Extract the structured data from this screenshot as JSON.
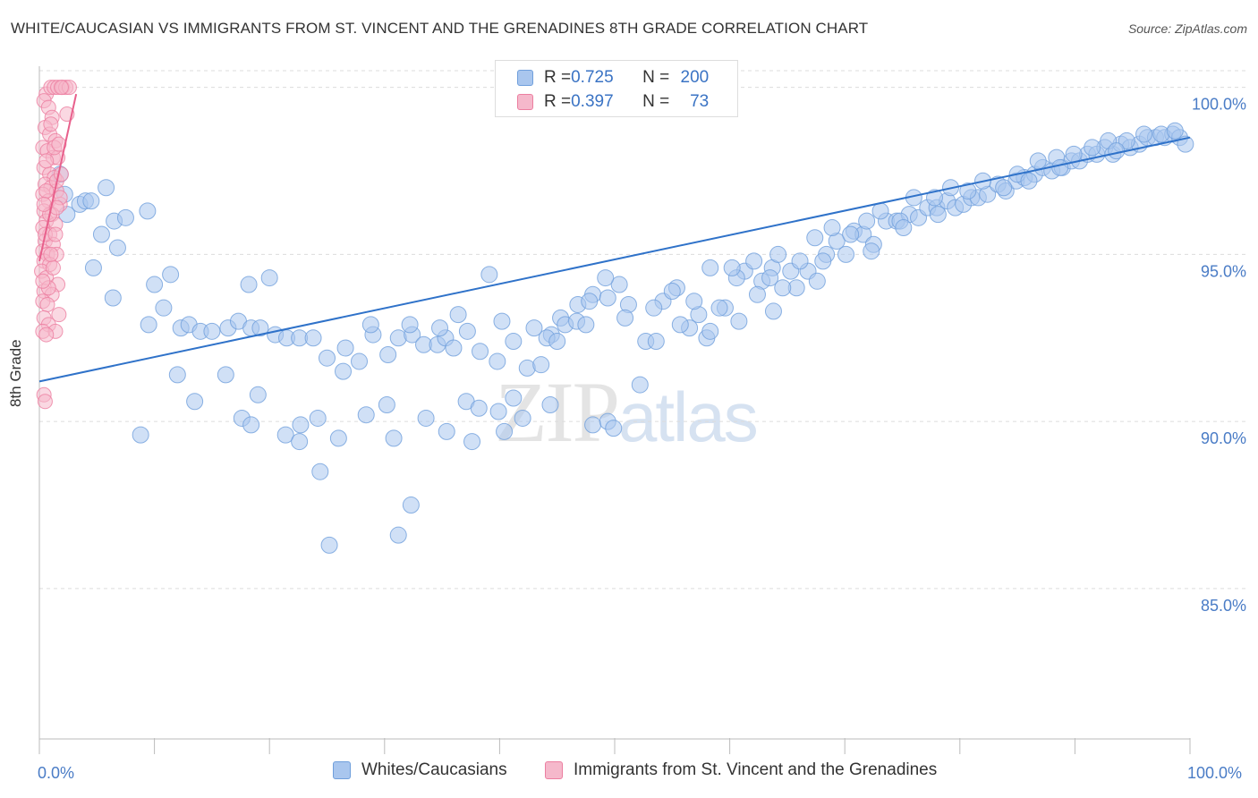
{
  "title": "WHITE/CAUCASIAN VS IMMIGRANTS FROM ST. VINCENT AND THE GRENADINES 8TH GRADE CORRELATION CHART",
  "source": "Source: ZipAtlas.com",
  "watermark": {
    "zip": "ZIP",
    "atlas": "atlas"
  },
  "legend_top": {
    "rows": [
      {
        "r_label": "R = ",
        "r_value": "0.725",
        "n_label": "N = ",
        "n_value": "200",
        "color": "#a9c6ee"
      },
      {
        "r_label": "R = ",
        "r_value": "0.397",
        "n_label": "N = ",
        "n_value": "73",
        "color": "#f5b8cb"
      }
    ]
  },
  "legend_bottom": [
    {
      "label": "Whites/Caucasians",
      "color": "#a9c6ee"
    },
    {
      "label": "Immigrants from St. Vincent and the Grenadines",
      "color": "#f5b8cb"
    }
  ],
  "chart_data": {
    "type": "scatter",
    "title": "WHITE/CAUCASIAN VS IMMIGRANTS FROM ST. VINCENT AND THE GRENADINES 8TH GRADE CORRELATION CHART",
    "xlabel": "",
    "ylabel": "8th Grade",
    "xlim": [
      0,
      100
    ],
    "ylim": [
      80.5,
      100.5
    ],
    "x_tick_labels": [
      "0.0%",
      "100.0%"
    ],
    "y_tick_labels": [
      "100.0%",
      "95.0%",
      "90.0%",
      "85.0%"
    ],
    "y_ticks": [
      100,
      95,
      90,
      85
    ],
    "grid": true,
    "legend_position": "top-center",
    "series": [
      {
        "name": "Whites/Caucasians",
        "color": "#6f9fdc",
        "fill": "#a9c6ee",
        "r": 0.725,
        "n": 200,
        "trend": {
          "x0": 0,
          "y0": 91.2,
          "x1": 100,
          "y1": 98.5
        },
        "points": [
          [
            1.8,
            97.4
          ],
          [
            2.2,
            96.8
          ],
          [
            2.4,
            96.2
          ],
          [
            3.5,
            96.5
          ],
          [
            4.0,
            96.6
          ],
          [
            4.5,
            96.6
          ],
          [
            5.8,
            97.0
          ],
          [
            5.4,
            95.6
          ],
          [
            6.5,
            96.0
          ],
          [
            7.5,
            96.1
          ],
          [
            6.8,
            95.2
          ],
          [
            4.7,
            94.6
          ],
          [
            6.4,
            93.7
          ],
          [
            9.4,
            96.3
          ],
          [
            11.4,
            94.4
          ],
          [
            10.0,
            94.1
          ],
          [
            10.8,
            93.4
          ],
          [
            9.5,
            92.9
          ],
          [
            12.3,
            92.8
          ],
          [
            13.0,
            92.9
          ],
          [
            14.0,
            92.7
          ],
          [
            15.0,
            92.7
          ],
          [
            16.4,
            92.8
          ],
          [
            17.3,
            93.0
          ],
          [
            18.2,
            94.1
          ],
          [
            18.4,
            92.8
          ],
          [
            19.2,
            92.8
          ],
          [
            20.0,
            94.3
          ],
          [
            20.5,
            92.6
          ],
          [
            21.5,
            92.5
          ],
          [
            22.6,
            92.5
          ],
          [
            23.8,
            92.5
          ],
          [
            25.0,
            91.9
          ],
          [
            26.4,
            91.5
          ],
          [
            27.8,
            91.8
          ],
          [
            29.0,
            92.6
          ],
          [
            30.3,
            92.0
          ],
          [
            31.2,
            92.5
          ],
          [
            32.4,
            92.6
          ],
          [
            33.4,
            92.3
          ],
          [
            34.6,
            92.3
          ],
          [
            35.3,
            92.5
          ],
          [
            36.0,
            92.2
          ],
          [
            37.2,
            92.7
          ],
          [
            38.3,
            92.1
          ],
          [
            39.8,
            91.8
          ],
          [
            41.2,
            92.4
          ],
          [
            42.4,
            91.6
          ],
          [
            43.6,
            91.7
          ],
          [
            44.5,
            92.6
          ],
          [
            45.3,
            93.1
          ],
          [
            46.8,
            93.5
          ],
          [
            48.1,
            93.8
          ],
          [
            49.4,
            93.7
          ],
          [
            50.4,
            94.1
          ],
          [
            51.2,
            93.5
          ],
          [
            52.7,
            92.4
          ],
          [
            54.2,
            93.6
          ],
          [
            55.4,
            94.0
          ],
          [
            56.5,
            92.8
          ],
          [
            57.3,
            93.2
          ],
          [
            58.0,
            92.5
          ],
          [
            59.6,
            93.4
          ],
          [
            60.8,
            93.0
          ],
          [
            61.3,
            94.5
          ],
          [
            62.8,
            94.2
          ],
          [
            63.7,
            94.6
          ],
          [
            64.2,
            95.0
          ],
          [
            65.3,
            94.5
          ],
          [
            65.8,
            94.0
          ],
          [
            66.8,
            94.5
          ],
          [
            67.6,
            94.2
          ],
          [
            68.4,
            95.0
          ],
          [
            69.3,
            95.4
          ],
          [
            70.1,
            95.0
          ],
          [
            70.8,
            95.7
          ],
          [
            71.6,
            95.6
          ],
          [
            72.5,
            95.3
          ],
          [
            73.6,
            96.0
          ],
          [
            74.5,
            96.0
          ],
          [
            75.6,
            96.2
          ],
          [
            76.4,
            96.1
          ],
          [
            77.2,
            96.4
          ],
          [
            78.0,
            96.4
          ],
          [
            78.9,
            96.6
          ],
          [
            79.6,
            96.4
          ],
          [
            80.3,
            96.5
          ],
          [
            81.0,
            96.7
          ],
          [
            81.6,
            96.7
          ],
          [
            82.4,
            96.8
          ],
          [
            83.3,
            97.1
          ],
          [
            84.0,
            96.9
          ],
          [
            84.9,
            97.2
          ],
          [
            85.6,
            97.3
          ],
          [
            86.5,
            97.4
          ],
          [
            87.2,
            97.6
          ],
          [
            88.0,
            97.5
          ],
          [
            88.9,
            97.6
          ],
          [
            89.7,
            97.8
          ],
          [
            90.4,
            97.8
          ],
          [
            91.1,
            98.0
          ],
          [
            91.9,
            98.0
          ],
          [
            92.6,
            98.2
          ],
          [
            93.3,
            98.0
          ],
          [
            94.0,
            98.3
          ],
          [
            94.8,
            98.2
          ],
          [
            95.6,
            98.3
          ],
          [
            96.3,
            98.5
          ],
          [
            97.0,
            98.5
          ],
          [
            97.8,
            98.5
          ],
          [
            98.5,
            98.6
          ],
          [
            99.1,
            98.5
          ],
          [
            99.6,
            98.3
          ],
          [
            12.0,
            91.4
          ],
          [
            13.5,
            90.6
          ],
          [
            16.2,
            91.4
          ],
          [
            17.6,
            90.1
          ],
          [
            19.0,
            90.8
          ],
          [
            21.4,
            89.6
          ],
          [
            22.7,
            89.9
          ],
          [
            24.2,
            90.1
          ],
          [
            26.0,
            89.5
          ],
          [
            28.4,
            90.2
          ],
          [
            30.8,
            89.5
          ],
          [
            33.6,
            90.1
          ],
          [
            35.4,
            89.7
          ],
          [
            37.1,
            90.6
          ],
          [
            38.2,
            90.4
          ],
          [
            40.4,
            89.7
          ],
          [
            42.0,
            90.1
          ],
          [
            44.1,
            92.5
          ],
          [
            45.7,
            92.9
          ],
          [
            47.8,
            93.6
          ],
          [
            49.2,
            94.3
          ],
          [
            50.9,
            93.1
          ],
          [
            52.2,
            91.1
          ],
          [
            53.6,
            92.4
          ],
          [
            55.7,
            92.9
          ],
          [
            56.9,
            93.6
          ],
          [
            58.3,
            92.7
          ],
          [
            59.1,
            93.4
          ],
          [
            60.6,
            94.3
          ],
          [
            62.1,
            94.8
          ],
          [
            63.5,
            94.3
          ],
          [
            64.6,
            94.0
          ],
          [
            66.1,
            94.8
          ],
          [
            67.4,
            95.5
          ],
          [
            68.9,
            95.8
          ],
          [
            70.5,
            95.6
          ],
          [
            71.9,
            96.0
          ],
          [
            73.1,
            96.3
          ],
          [
            74.8,
            96.0
          ],
          [
            76.0,
            96.7
          ],
          [
            77.8,
            96.7
          ],
          [
            79.2,
            97.0
          ],
          [
            80.7,
            96.9
          ],
          [
            82.0,
            97.2
          ],
          [
            83.8,
            97.0
          ],
          [
            85.0,
            97.4
          ],
          [
            86.8,
            97.8
          ],
          [
            88.4,
            97.9
          ],
          [
            89.9,
            98.0
          ],
          [
            91.5,
            98.2
          ],
          [
            92.9,
            98.4
          ],
          [
            94.5,
            98.4
          ],
          [
            96.0,
            98.6
          ],
          [
            97.5,
            98.6
          ],
          [
            98.7,
            98.7
          ],
          [
            24.4,
            88.5
          ],
          [
            25.2,
            86.3
          ],
          [
            31.2,
            86.6
          ],
          [
            32.3,
            87.5
          ],
          [
            8.8,
            89.6
          ],
          [
            18.4,
            89.9
          ],
          [
            22.6,
            89.4
          ],
          [
            30.2,
            90.5
          ],
          [
            41.2,
            90.7
          ],
          [
            48.1,
            89.9
          ],
          [
            44.4,
            90.5
          ],
          [
            49.4,
            90.0
          ],
          [
            37.6,
            89.4
          ],
          [
            39.9,
            90.3
          ],
          [
            63.8,
            93.3
          ],
          [
            62.4,
            93.8
          ],
          [
            60.2,
            94.6
          ],
          [
            58.3,
            94.6
          ],
          [
            46.7,
            93.0
          ],
          [
            53.4,
            93.4
          ],
          [
            55.0,
            93.9
          ],
          [
            47.5,
            92.9
          ],
          [
            45.0,
            92.4
          ],
          [
            43.0,
            92.8
          ],
          [
            40.2,
            93.0
          ],
          [
            36.4,
            93.2
          ],
          [
            34.8,
            92.8
          ],
          [
            32.2,
            92.9
          ],
          [
            28.8,
            92.9
          ],
          [
            26.6,
            92.2
          ],
          [
            39.1,
            94.4
          ],
          [
            49.9,
            89.8
          ],
          [
            68.1,
            94.8
          ],
          [
            72.3,
            95.1
          ],
          [
            75.1,
            95.8
          ],
          [
            78.1,
            96.2
          ],
          [
            86.0,
            97.2
          ],
          [
            88.7,
            97.6
          ],
          [
            93.6,
            98.1
          ]
        ]
      },
      {
        "name": "Immigrants from St. Vincent and the Grenadines",
        "color": "#ec7ea0",
        "fill": "#f5b8cb",
        "r": 0.397,
        "n": 73,
        "trend": {
          "x0": 0,
          "y0": 94.8,
          "x1": 3.2,
          "y1": 99.8
        },
        "points": [
          [
            0.6,
            99.8
          ],
          [
            1.0,
            100.0
          ],
          [
            1.3,
            100.0
          ],
          [
            1.6,
            100.0
          ],
          [
            2.0,
            100.0
          ],
          [
            2.3,
            100.0
          ],
          [
            2.6,
            100.0
          ],
          [
            0.4,
            99.6
          ],
          [
            0.8,
            99.4
          ],
          [
            1.1,
            99.1
          ],
          [
            2.4,
            99.2
          ],
          [
            0.5,
            98.8
          ],
          [
            0.9,
            98.6
          ],
          [
            1.4,
            98.4
          ],
          [
            0.3,
            98.2
          ],
          [
            0.7,
            98.1
          ],
          [
            1.2,
            97.9
          ],
          [
            1.6,
            97.9
          ],
          [
            0.4,
            97.6
          ],
          [
            0.9,
            97.4
          ],
          [
            1.3,
            97.3
          ],
          [
            0.5,
            97.1
          ],
          [
            1.0,
            97.0
          ],
          [
            1.5,
            96.9
          ],
          [
            0.3,
            96.8
          ],
          [
            0.8,
            96.6
          ],
          [
            1.8,
            96.5
          ],
          [
            0.4,
            96.3
          ],
          [
            1.1,
            96.2
          ],
          [
            0.6,
            96.0
          ],
          [
            1.4,
            95.9
          ],
          [
            0.3,
            95.8
          ],
          [
            0.9,
            95.6
          ],
          [
            0.5,
            95.4
          ],
          [
            1.2,
            95.3
          ],
          [
            0.3,
            95.1
          ],
          [
            0.7,
            95.0
          ],
          [
            1.5,
            95.0
          ],
          [
            0.4,
            94.8
          ],
          [
            0.9,
            94.7
          ],
          [
            0.2,
            94.5
          ],
          [
            0.6,
            94.3
          ],
          [
            1.6,
            94.1
          ],
          [
            0.4,
            93.9
          ],
          [
            1.1,
            93.8
          ],
          [
            0.3,
            93.6
          ],
          [
            0.7,
            93.5
          ],
          [
            1.7,
            93.2
          ],
          [
            0.4,
            93.1
          ],
          [
            0.8,
            92.9
          ],
          [
            0.3,
            92.7
          ],
          [
            1.4,
            92.7
          ],
          [
            0.6,
            92.6
          ],
          [
            0.4,
            90.8
          ],
          [
            0.5,
            90.6
          ],
          [
            1.8,
            96.7
          ],
          [
            1.5,
            97.2
          ],
          [
            0.9,
            96.2
          ],
          [
            1.3,
            98.2
          ],
          [
            0.6,
            97.8
          ],
          [
            1.0,
            98.9
          ],
          [
            1.9,
            100.0
          ],
          [
            1.7,
            98.3
          ],
          [
            0.5,
            95.6
          ],
          [
            1.2,
            94.6
          ],
          [
            0.8,
            94.0
          ],
          [
            1.4,
            95.6
          ],
          [
            0.6,
            96.9
          ],
          [
            1.0,
            95.0
          ],
          [
            0.4,
            96.5
          ],
          [
            1.9,
            97.4
          ],
          [
            0.3,
            94.2
          ],
          [
            1.5,
            96.4
          ]
        ]
      }
    ]
  }
}
